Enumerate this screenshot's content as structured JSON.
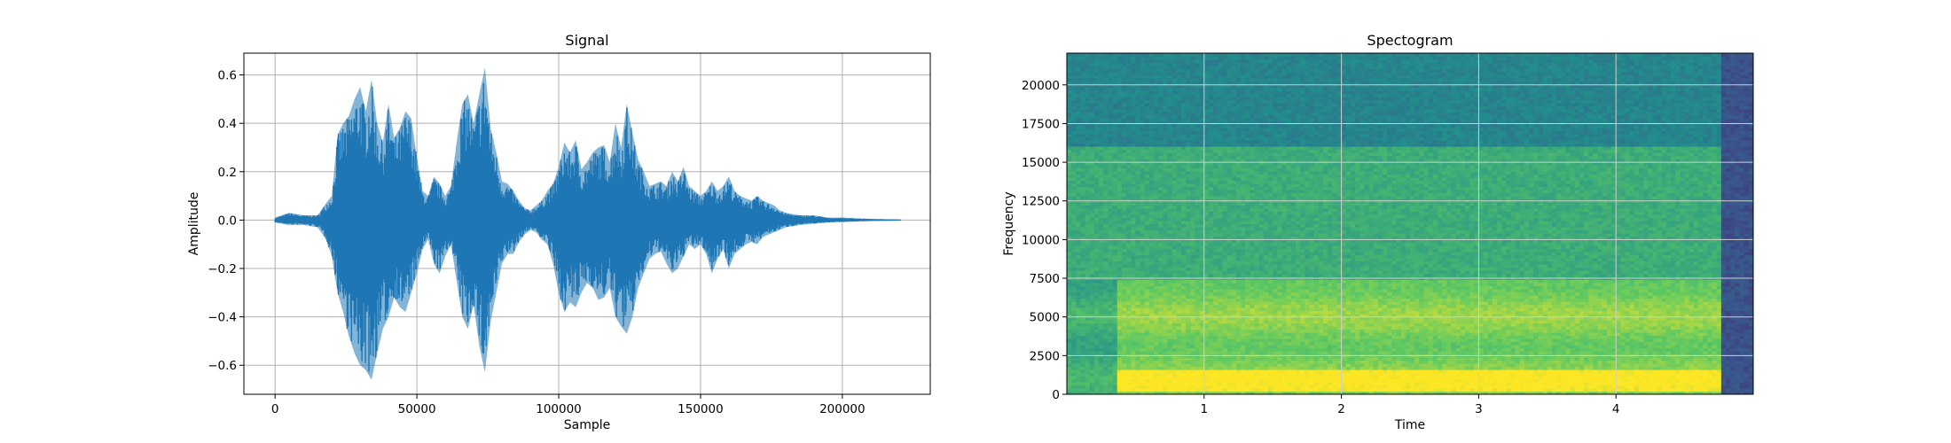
{
  "chart_data": [
    {
      "type": "line",
      "title": "Signal",
      "xlabel": "Sample",
      "ylabel": "Amplitude",
      "xlim": [
        -11000,
        231000
      ],
      "ylim": [
        -0.72,
        0.69
      ],
      "xticks": [
        0,
        50000,
        100000,
        150000,
        200000
      ],
      "yticks": [
        -0.6,
        -0.4,
        -0.2,
        0.0,
        0.2,
        0.4,
        0.6
      ],
      "xtick_labels": [
        "0",
        "50000",
        "100000",
        "150000",
        "200000"
      ],
      "ytick_labels": [
        "−0.6",
        "−0.4",
        "−0.2",
        "0.0",
        "0.2",
        "0.4",
        "0.6"
      ],
      "grid": true,
      "color": "#1f77b4",
      "series": [
        {
          "x": [
            0,
            5000,
            10000,
            15000,
            18000,
            20000,
            22000,
            24000,
            26000,
            28000,
            30000,
            32000,
            34000,
            36000,
            38000,
            40000,
            42000,
            44000,
            46000,
            48000,
            50000,
            52000,
            54000,
            56000,
            58000,
            60000,
            62000,
            64000,
            66000,
            68000,
            70000,
            72000,
            74000,
            76000,
            78000,
            80000,
            82000,
            84000,
            86000,
            88000,
            90000,
            92000,
            94000,
            96000,
            98000,
            100000,
            102000,
            104000,
            106000,
            108000,
            110000,
            112000,
            114000,
            116000,
            118000,
            120000,
            122000,
            124000,
            126000,
            128000,
            130000,
            132000,
            134000,
            136000,
            138000,
            140000,
            142000,
            144000,
            146000,
            148000,
            150000,
            152000,
            154000,
            156000,
            158000,
            160000,
            162000,
            164000,
            166000,
            168000,
            170000,
            172000,
            174000,
            176000,
            178000,
            180000,
            185000,
            190000,
            195000,
            200000,
            210000,
            220500
          ],
          "upper": [
            0.01,
            0.03,
            0.02,
            0.02,
            0.07,
            0.1,
            0.35,
            0.4,
            0.43,
            0.5,
            0.55,
            0.45,
            0.58,
            0.4,
            0.32,
            0.48,
            0.34,
            0.38,
            0.45,
            0.42,
            0.26,
            0.12,
            0.1,
            0.18,
            0.15,
            0.1,
            0.14,
            0.32,
            0.48,
            0.52,
            0.4,
            0.52,
            0.63,
            0.38,
            0.28,
            0.16,
            0.15,
            0.12,
            0.08,
            0.05,
            0.04,
            0.06,
            0.08,
            0.12,
            0.15,
            0.22,
            0.32,
            0.28,
            0.33,
            0.21,
            0.24,
            0.28,
            0.3,
            0.31,
            0.24,
            0.4,
            0.3,
            0.48,
            0.36,
            0.25,
            0.2,
            0.14,
            0.15,
            0.16,
            0.14,
            0.2,
            0.16,
            0.22,
            0.14,
            0.12,
            0.1,
            0.12,
            0.16,
            0.12,
            0.14,
            0.18,
            0.12,
            0.1,
            0.09,
            0.08,
            0.1,
            0.08,
            0.07,
            0.06,
            0.04,
            0.03,
            0.02,
            0.02,
            0.01,
            0.01,
            0.005,
            0.002
          ],
          "lower": [
            -0.01,
            -0.02,
            -0.02,
            -0.03,
            -0.08,
            -0.15,
            -0.3,
            -0.38,
            -0.48,
            -0.55,
            -0.6,
            -0.62,
            -0.66,
            -0.55,
            -0.45,
            -0.4,
            -0.32,
            -0.36,
            -0.38,
            -0.3,
            -0.22,
            -0.12,
            -0.08,
            -0.18,
            -0.22,
            -0.15,
            -0.1,
            -0.25,
            -0.4,
            -0.45,
            -0.35,
            -0.52,
            -0.63,
            -0.42,
            -0.3,
            -0.18,
            -0.14,
            -0.14,
            -0.09,
            -0.06,
            -0.04,
            -0.05,
            -0.08,
            -0.1,
            -0.18,
            -0.3,
            -0.38,
            -0.34,
            -0.36,
            -0.3,
            -0.26,
            -0.28,
            -0.33,
            -0.32,
            -0.28,
            -0.4,
            -0.44,
            -0.47,
            -0.4,
            -0.28,
            -0.22,
            -0.16,
            -0.14,
            -0.13,
            -0.18,
            -0.22,
            -0.2,
            -0.15,
            -0.1,
            -0.12,
            -0.1,
            -0.14,
            -0.22,
            -0.16,
            -0.12,
            -0.2,
            -0.14,
            -0.12,
            -0.1,
            -0.09,
            -0.1,
            -0.07,
            -0.06,
            -0.05,
            -0.04,
            -0.03,
            -0.02,
            -0.015,
            -0.01,
            -0.008,
            -0.004,
            -0.002
          ]
        }
      ]
    },
    {
      "type": "heatmap",
      "title": "Spectogram",
      "xlabel": "Time",
      "ylabel": "Frequency",
      "xlim": [
        0,
        5.0
      ],
      "ylim": [
        0,
        22050
      ],
      "xticks": [
        1,
        2,
        3,
        4
      ],
      "yticks": [
        0,
        2500,
        5000,
        7500,
        10000,
        12500,
        15000,
        17500,
        20000
      ],
      "xtick_labels": [
        "1",
        "2",
        "3",
        "4"
      ],
      "ytick_labels": [
        "0",
        "2500",
        "5000",
        "7500",
        "10000",
        "12500",
        "15000",
        "17500",
        "20000"
      ],
      "grid": true,
      "colormap": "viridis",
      "colors": {
        "background": "#21918c",
        "mid_band": "#5ec962",
        "speech_band": "#b5de2b",
        "peak_band": "#fde725",
        "tail_block": "#3b528b"
      },
      "regions": [
        {
          "t": [
            0,
            4.77
          ],
          "f": [
            16100,
            22050
          ],
          "level": 0.45
        },
        {
          "t": [
            0,
            4.77
          ],
          "f": [
            7500,
            16100
          ],
          "level": 0.62
        },
        {
          "t": [
            0,
            0.38
          ],
          "f": [
            0,
            7500
          ],
          "level": 0.62
        },
        {
          "t": [
            0.38,
            4.77
          ],
          "f": [
            0,
            7500
          ],
          "level": 0.8
        },
        {
          "t": [
            0.38,
            4.77
          ],
          "f": [
            300,
            1600
          ],
          "level": 0.97
        },
        {
          "t": [
            4.77,
            5.0
          ],
          "f": [
            0,
            22050
          ],
          "level": 0.25
        }
      ]
    }
  ]
}
